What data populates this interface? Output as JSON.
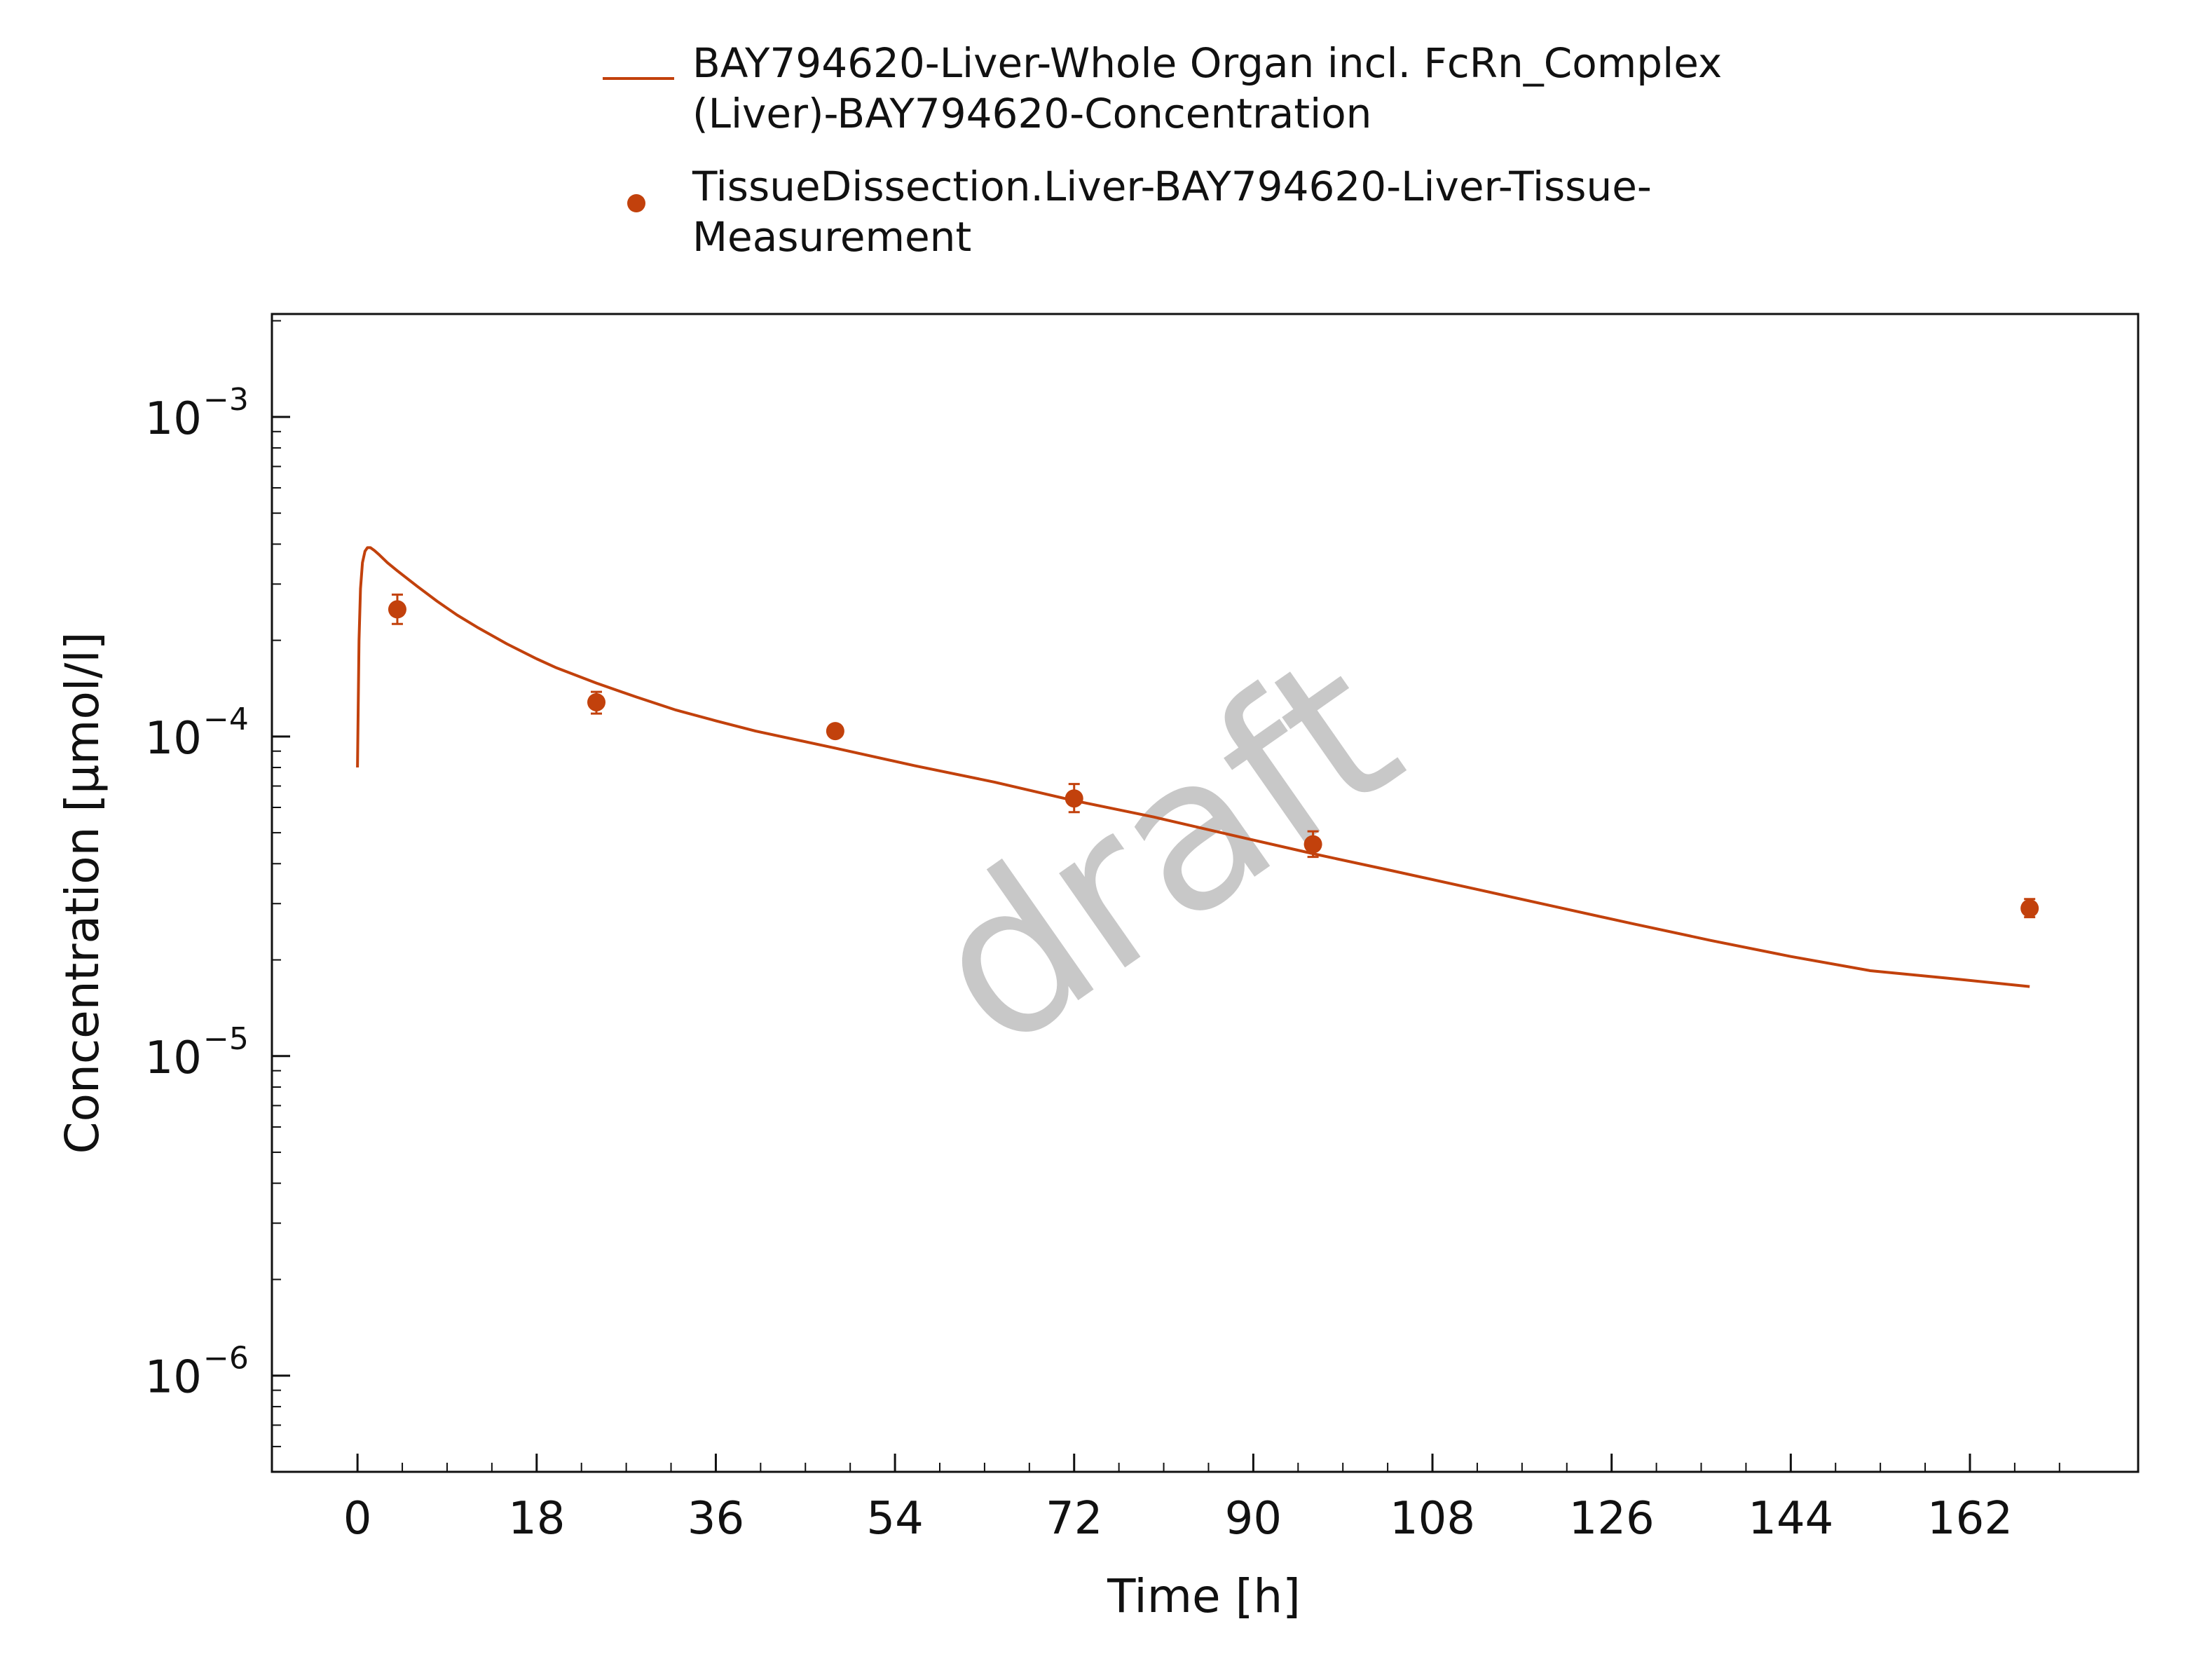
{
  "chart_data": {
    "type": "line",
    "xlabel": "Time [h]",
    "ylabel": "Concentration [µmol/l]",
    "x_ticks": [
      0,
      18,
      36,
      54,
      72,
      90,
      108,
      126,
      144,
      162
    ],
    "y_scale": "log",
    "y_ticks": [
      {
        "value": 1e-06,
        "label": "10",
        "exp": "−6"
      },
      {
        "value": 1e-05,
        "label": "10",
        "exp": "−5"
      },
      {
        "value": 0.0001,
        "label": "10",
        "exp": "−4"
      },
      {
        "value": 0.001,
        "label": "10",
        "exp": "−3"
      }
    ],
    "xlim": [
      -8.6,
      178.9
    ],
    "ylim": [
      5e-07,
      0.0021
    ],
    "watermark": "draft",
    "legend": {
      "position": "top-center"
    },
    "series": [
      {
        "name": "BAY794620-Liver-Whole Organ incl. FcRn_Complex (Liver)-BAY794620-Concentration",
        "legend_lines": [
          "BAY794620-Liver-Whole Organ incl. FcRn_Complex",
          "(Liver)-BAY794620-Concentration"
        ],
        "kind": "line",
        "color": "#c2410c",
        "x": [
          0,
          0.15,
          0.3,
          0.5,
          0.75,
          1.0,
          1.3,
          1.7,
          2.2,
          3,
          4,
          6,
          8,
          10,
          12,
          15,
          18,
          20,
          24,
          28,
          32,
          36,
          40,
          48,
          56,
          64,
          72,
          80,
          88,
          96,
          104,
          112,
          120,
          128,
          136,
          144,
          152,
          160,
          168
        ],
        "y": [
          8e-05,
          0.0002,
          0.00029,
          0.00035,
          0.00038,
          0.00039,
          0.00039,
          0.000382,
          0.00037,
          0.00035,
          0.00033,
          0.000295,
          0.000265,
          0.00024,
          0.00022,
          0.000195,
          0.000175,
          0.000164,
          0.000147,
          0.000133,
          0.000121,
          0.000112,
          0.000104,
          9.2e-05,
          8.1e-05,
          7.2e-05,
          6.3e-05,
          5.6e-05,
          4.9e-05,
          4.3e-05,
          3.8e-05,
          3.35e-05,
          2.95e-05,
          2.6e-05,
          2.3e-05,
          2.05e-05,
          1.85e-05,
          1.75e-05,
          1.65e-05
        ]
      },
      {
        "name": "TissueDissection.Liver-BAY794620-Liver-Tissue-Measurement",
        "legend_lines": [
          "TissueDissection.Liver-BAY794620-Liver-Tissue-",
          "Measurement"
        ],
        "kind": "scatter",
        "color": "#c2410c",
        "x": [
          4,
          24,
          48,
          72,
          96,
          168
        ],
        "y": [
          0.00025,
          0.000128,
          0.000104,
          6.4e-05,
          4.6e-05,
          2.9e-05
        ],
        "y_err_low": [
          0.000225,
          0.000118,
          0.000101,
          5.8e-05,
          4.2e-05,
          2.72e-05
        ],
        "y_err_high": [
          0.000278,
          0.000138,
          0.000107,
          7.1e-05,
          5.05e-05,
          3.1e-05
        ]
      }
    ]
  }
}
